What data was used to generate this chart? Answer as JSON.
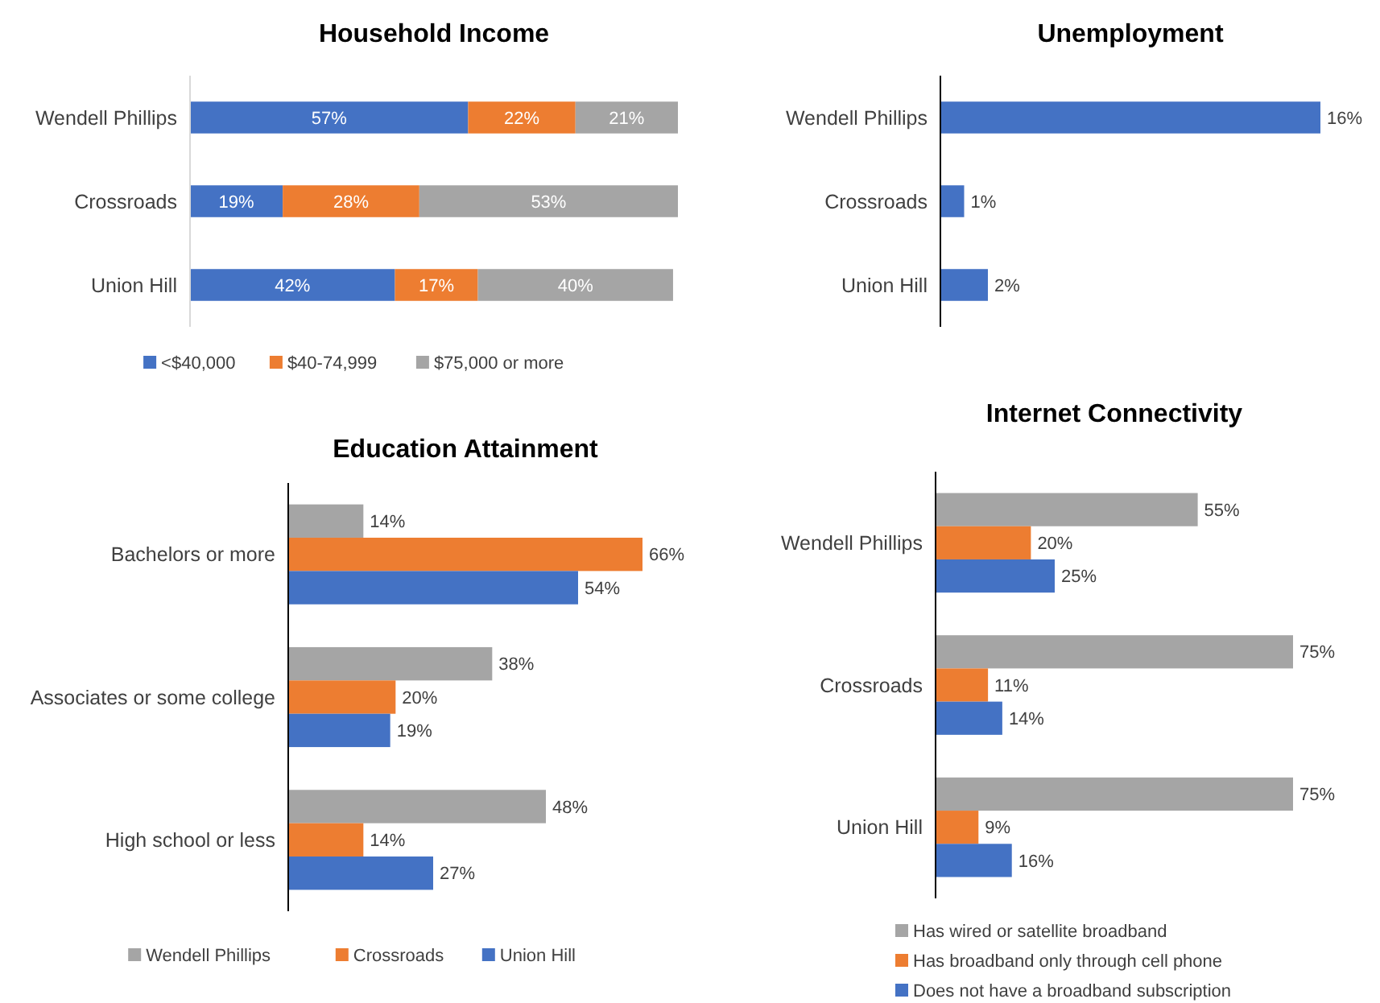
{
  "chart_data": [
    {
      "type": "bar",
      "orientation": "horizontal",
      "stacked": true,
      "title": "Household Income",
      "categories": [
        "Wendell Phillips",
        "Crossroads",
        "Union Hill"
      ],
      "legend": "bottom",
      "series": [
        {
          "name": "<$40,000",
          "color": "#4472c4",
          "values": [
            57,
            19,
            42
          ],
          "value_labels": [
            "57%",
            "19%",
            "42%"
          ]
        },
        {
          "name": "$40-74,999",
          "color": "#ed7d31",
          "values": [
            22,
            28,
            17
          ],
          "value_labels": [
            "22%",
            "28%",
            "17%"
          ]
        },
        {
          "name": "$75,000 or more",
          "color": "#a5a5a5",
          "values": [
            21,
            53,
            40
          ],
          "value_labels": [
            "21%",
            "53%",
            "40%"
          ]
        }
      ]
    },
    {
      "type": "bar",
      "orientation": "horizontal",
      "title": "Unemployment",
      "categories": [
        "Wendell Phillips",
        "Crossroads",
        "Union Hill"
      ],
      "series": [
        {
          "color": "#4472c4",
          "values": [
            16,
            1,
            2
          ],
          "value_labels": [
            "16%",
            "1%",
            "2%"
          ]
        }
      ]
    },
    {
      "type": "bar",
      "orientation": "horizontal",
      "title": "Education Attainment",
      "categories": [
        "Bachelors or more",
        "Associates or some college",
        "High school or less"
      ],
      "legend": "bottom",
      "series": [
        {
          "name": "Wendell Phillips",
          "color": "#a5a5a5",
          "values": [
            14,
            38,
            48
          ],
          "value_labels": [
            "14%",
            "38%",
            "48%"
          ]
        },
        {
          "name": "Crossroads",
          "color": "#ed7d31",
          "values": [
            66,
            20,
            14
          ],
          "value_labels": [
            "66%",
            "20%",
            "14%"
          ]
        },
        {
          "name": "Union Hill",
          "color": "#4472c4",
          "values": [
            54,
            19,
            27
          ],
          "value_labels": [
            "54%",
            "19%",
            "27%"
          ]
        }
      ]
    },
    {
      "type": "bar",
      "orientation": "horizontal",
      "title": "Internet Connectivity",
      "categories": [
        "Wendell Phillips",
        "Crossroads",
        "Union Hill"
      ],
      "legend": "bottom",
      "series": [
        {
          "name": "Has wired or satellite broadband",
          "color": "#a5a5a5",
          "values": [
            55,
            75,
            75
          ],
          "value_labels": [
            "55%",
            "75%",
            "75%"
          ]
        },
        {
          "name": "Has broadband only through cell phone",
          "color": "#ed7d31",
          "values": [
            20,
            11,
            9
          ],
          "value_labels": [
            "20%",
            "11%",
            "9%"
          ]
        },
        {
          "name": "Does not have a broadband subscription",
          "color": "#4472c4",
          "values": [
            25,
            14,
            16
          ],
          "value_labels": [
            "25%",
            "14%",
            "16%"
          ]
        }
      ]
    }
  ]
}
